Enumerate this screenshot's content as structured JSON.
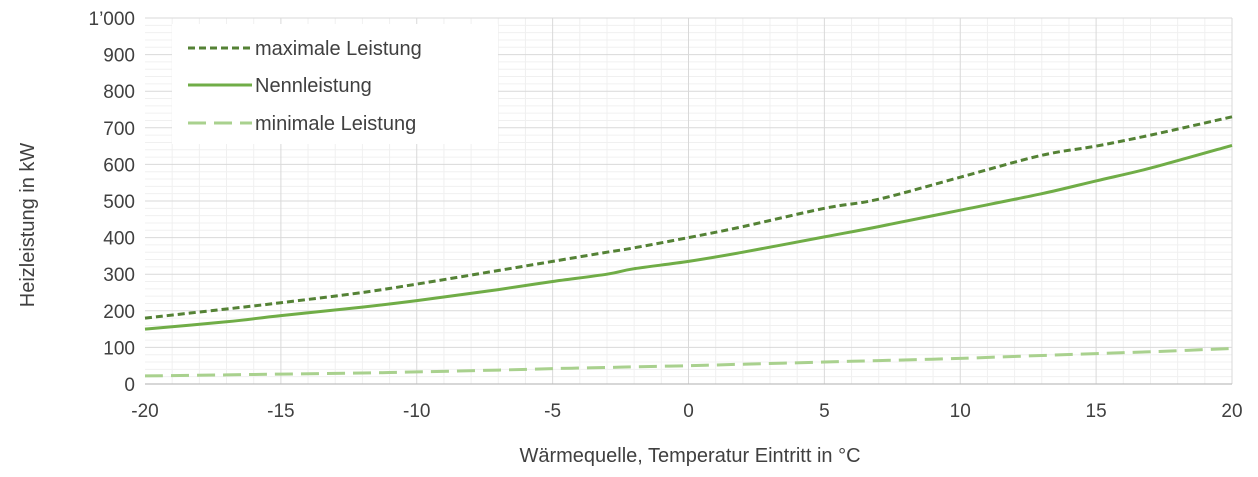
{
  "chart_data": {
    "type": "line",
    "title": "",
    "xlabel": "Wärmequelle, Temperatur Eintritt in °C",
    "ylabel": "Heizleistung in kW",
    "xlim": [
      -20,
      20
    ],
    "ylim": [
      0,
      1000
    ],
    "x_ticks": [
      "-20",
      "-15",
      "-10",
      "-5",
      "0",
      "5",
      "10",
      "15",
      "20"
    ],
    "y_ticks": [
      "0",
      "100",
      "200",
      "300",
      "400",
      "500",
      "600",
      "700",
      "800",
      "900",
      "1’000"
    ],
    "grid": true,
    "legend_position": "top-left",
    "x": [
      -20,
      -17,
      -15,
      -12,
      -10,
      -7,
      -5,
      -3,
      -2,
      0,
      2,
      5,
      7,
      10,
      13,
      15,
      17,
      20
    ],
    "series": [
      {
        "name": "maximale Leistung",
        "style": "dashed-short",
        "color": "#548235",
        "values": [
          180,
          205,
          222,
          250,
          273,
          310,
          335,
          360,
          372,
          400,
          430,
          480,
          505,
          565,
          625,
          650,
          680,
          730
        ]
      },
      {
        "name": "Nennleistung",
        "style": "solid",
        "color": "#70AD47",
        "values": [
          150,
          170,
          187,
          210,
          228,
          258,
          280,
          300,
          315,
          335,
          360,
          402,
          430,
          475,
          520,
          555,
          590,
          652
        ]
      },
      {
        "name": "minimale Leistung",
        "style": "dashed-long",
        "color": "#A9D18E",
        "values": [
          22,
          25,
          27,
          30,
          33,
          38,
          42,
          45,
          47,
          50,
          54,
          60,
          64,
          70,
          78,
          83,
          88,
          97
        ]
      }
    ]
  }
}
